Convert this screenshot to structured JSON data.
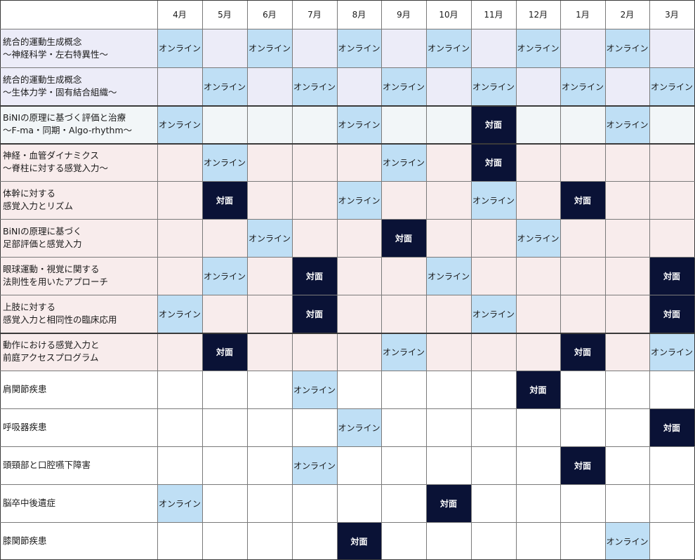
{
  "months": [
    "4月",
    "5月",
    "6月",
    "7月",
    "8月",
    "9月",
    "10月",
    "11月",
    "12月",
    "1月",
    "2月",
    "3月"
  ],
  "labels": {
    "online": "オンライン",
    "inperson": "対面"
  },
  "colors": {
    "online_bg": "#bfdff5",
    "inperson_bg": "#0a1236",
    "group_basic_bg": "#ececf8",
    "group_bini_bg": "#f2f6f8",
    "group_applied_bg": "#f8ecec",
    "group_disease_bg": "#ffffff"
  },
  "courses": [
    {
      "title": [
        "統合的運動生成概念",
        "〜神経科学・左右特異性〜"
      ],
      "group": "blue",
      "slots": [
        "online",
        "",
        "online",
        "",
        "online",
        "",
        "online",
        "",
        "online",
        "",
        "online",
        ""
      ]
    },
    {
      "title": [
        "統合的運動生成概念",
        "〜生体力学・固有結合組織〜"
      ],
      "group": "blue",
      "slots": [
        "",
        "online",
        "",
        "online",
        "",
        "online",
        "",
        "online",
        "",
        "online",
        "",
        "online"
      ]
    },
    {
      "title": [
        "BiNIの原理に基づく評価と治療",
        "〜F-ma・同期・Algo-rhythm〜"
      ],
      "group": "teal",
      "slots": [
        "online",
        "",
        "",
        "",
        "online",
        "",
        "",
        "inperson",
        "",
        "",
        "online",
        ""
      ]
    },
    {
      "title": [
        "神経・血管ダイナミクス",
        "〜脊柱に対する感覚入力〜"
      ],
      "group": "pink",
      "slots": [
        "",
        "online",
        "",
        "",
        "",
        "online",
        "",
        "inperson",
        "",
        "",
        "",
        ""
      ]
    },
    {
      "title": [
        "体幹に対する",
        "感覚入力とリズム"
      ],
      "group": "pink",
      "slots": [
        "",
        "inperson",
        "",
        "",
        "online",
        "",
        "",
        "online",
        "",
        "inperson",
        "",
        ""
      ]
    },
    {
      "title": [
        "BiNIの原理に基づく",
        "足部評価と感覚入力"
      ],
      "group": "pink",
      "slots": [
        "",
        "",
        "online",
        "",
        "",
        "inperson",
        "",
        "",
        "online",
        "",
        "",
        ""
      ]
    },
    {
      "title": [
        "眼球運動・視覚に関する",
        "法則性を用いたアプローチ"
      ],
      "group": "pink",
      "slots": [
        "",
        "online",
        "",
        "inperson",
        "",
        "",
        "online",
        "",
        "",
        "",
        "",
        "inperson"
      ]
    },
    {
      "title": [
        "上肢に対する",
        "感覚入力と相同性の臨床応用"
      ],
      "group": "pink",
      "slots": [
        "online",
        "",
        "",
        "inperson",
        "",
        "",
        "",
        "online",
        "",
        "",
        "",
        "inperson"
      ]
    },
    {
      "title": [
        "動作における感覚入力と",
        "前庭アクセスプログラム"
      ],
      "group": "pink",
      "slots": [
        "",
        "inperson",
        "",
        "",
        "",
        "online",
        "",
        "",
        "",
        "inperson",
        "",
        "online"
      ]
    },
    {
      "title": [
        "肩関節疾患"
      ],
      "group": "white",
      "slots": [
        "",
        "",
        "",
        "online",
        "",
        "",
        "",
        "",
        "inperson",
        "",
        "",
        ""
      ]
    },
    {
      "title": [
        "呼吸器疾患"
      ],
      "group": "white",
      "slots": [
        "",
        "",
        "",
        "",
        "online",
        "",
        "",
        "",
        "",
        "",
        "",
        "inperson"
      ]
    },
    {
      "title": [
        "頭頸部と口腔嚥下障害"
      ],
      "group": "white",
      "slots": [
        "",
        "",
        "",
        "online",
        "",
        "",
        "",
        "",
        "",
        "inperson",
        "",
        ""
      ]
    },
    {
      "title": [
        "脳卒中後遺症"
      ],
      "group": "white",
      "slots": [
        "online",
        "",
        "",
        "",
        "",
        "",
        "inperson",
        "",
        "",
        "",
        "",
        ""
      ]
    },
    {
      "title": [
        "膝関節疾患"
      ],
      "group": "white",
      "slots": [
        "",
        "",
        "",
        "",
        "inperson",
        "",
        "",
        "",
        "",
        "",
        "online",
        ""
      ]
    }
  ]
}
